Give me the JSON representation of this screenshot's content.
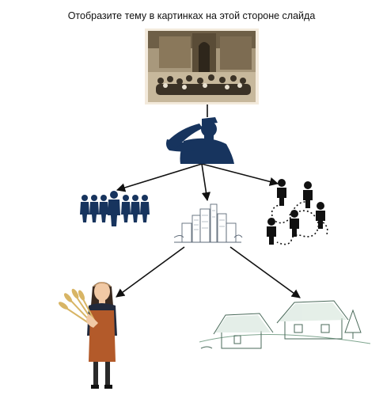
{
  "slide": {
    "title": "Отобразите тему в  картинках на этой стороне слайда"
  },
  "colors": {
    "navy": "#17345e",
    "black": "#111111",
    "sepia": "#8c7a5e",
    "apron": "#b35a2a",
    "wheat": "#d8b565"
  },
  "images": [
    {
      "name": "historical-photo",
      "icon": "sepia-photograph"
    },
    {
      "name": "saluting-soldier",
      "icon": "saluting-soldier-icon"
    },
    {
      "name": "soldiers-group",
      "icon": "soldiers-row-icon"
    },
    {
      "name": "city-sketch",
      "icon": "city-skyline-icon"
    },
    {
      "name": "people-network",
      "icon": "people-network-icon"
    },
    {
      "name": "farmer-woman",
      "icon": "woman-with-wheat-icon"
    },
    {
      "name": "village-houses",
      "icon": "village-houses-icon"
    }
  ]
}
